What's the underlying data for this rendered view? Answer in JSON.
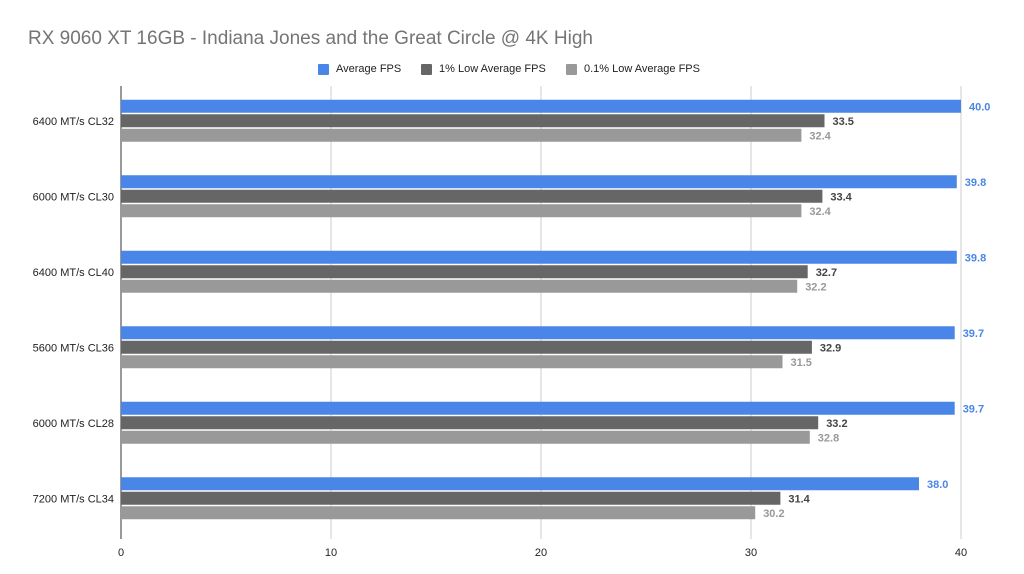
{
  "chart_data": {
    "type": "bar",
    "orientation": "horizontal",
    "title": "RX 9060 XT 16GB - Indiana Jones and the Great Circle @ 4K High",
    "categories": [
      "6400 MT/s CL32",
      "6000 MT/s CL30",
      "6400 MT/s CL40",
      "5600 MT/s CL36",
      "6000 MT/s CL28",
      "7200 MT/s CL34"
    ],
    "series": [
      {
        "name": "Average FPS",
        "color": "#4a86e8",
        "label_color": "#4a86e8",
        "values": [
          40.0,
          39.8,
          39.8,
          39.7,
          39.7,
          38.0
        ]
      },
      {
        "name": "1% Low Average FPS",
        "color": "#666666",
        "label_color": "#444444",
        "values": [
          33.5,
          33.4,
          32.7,
          32.9,
          33.2,
          31.4
        ]
      },
      {
        "name": "0.1% Low Average FPS",
        "color": "#999999",
        "label_color": "#999999",
        "values": [
          32.4,
          32.4,
          32.2,
          31.5,
          32.8,
          30.2
        ]
      }
    ],
    "xlim": [
      0,
      40
    ],
    "xticks": [
      "0",
      "10",
      "20",
      "30",
      "40"
    ],
    "xlabel": "",
    "ylabel": "",
    "grid": true,
    "legend_position": "top"
  }
}
